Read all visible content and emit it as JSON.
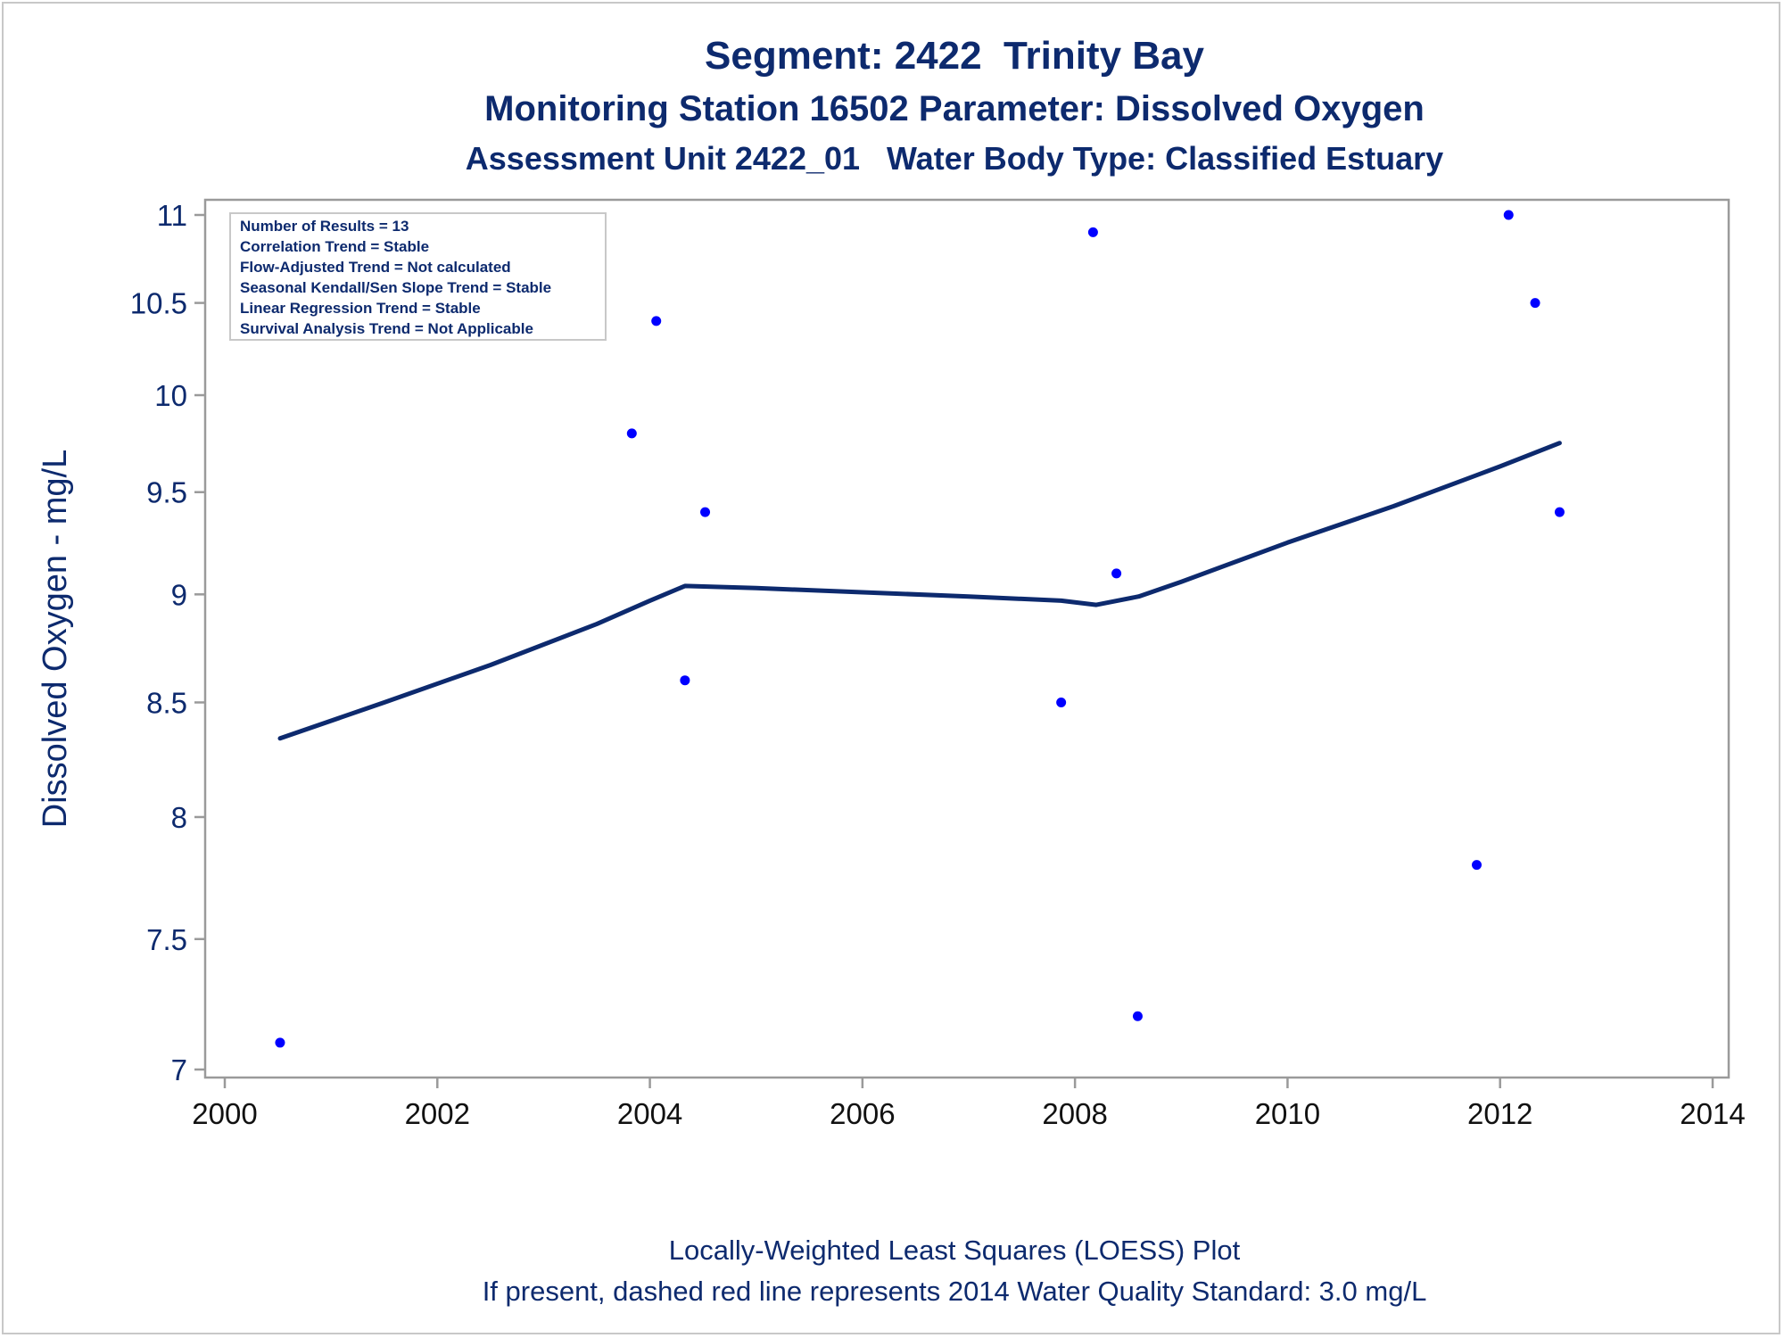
{
  "titles": {
    "line1": "Segment: 2422  Trinity Bay",
    "line2": "Monitoring Station 16502 Parameter: Dissolved Oxygen",
    "line3": "Assessment Unit 2422_01   Water Body Type: Classified Estuary"
  },
  "footnotes": {
    "line1": "Locally-Weighted Least Squares (LOESS) Plot",
    "line2": "If present, dashed red line represents 2014 Water Quality Standard: 3.0 mg/L"
  },
  "stats_box": [
    "Number of Results = 13",
    "Correlation Trend = Stable",
    "Flow-Adjusted Trend = Not calculated",
    "Seasonal Kendall/Sen Slope Trend = Stable",
    "Linear Regression Trend = Stable",
    "Survival Analysis Trend = Not Applicable"
  ],
  "colors": {
    "text": "#0d2a6e",
    "points": "#0000ff",
    "loess_line": "#0d2a6e",
    "axis": "#9a9a9a"
  },
  "chart_data": {
    "type": "scatter",
    "ylabel": "Dissolved Oxygen - mg/L",
    "xlabel": "",
    "xlim": [
      2000,
      2014
    ],
    "ylim": [
      7,
      11
    ],
    "y_scale": "log",
    "x_ticks": [
      2000,
      2002,
      2004,
      2006,
      2008,
      2010,
      2012,
      2014
    ],
    "y_ticks": [
      7,
      7.5,
      8,
      8.5,
      9,
      9.5,
      10,
      10.5,
      11
    ],
    "y_tick_labels": [
      "7",
      "7.5",
      "8",
      "8.5",
      "9",
      "9.5",
      "10",
      "10.5",
      "11"
    ],
    "x_tick_labels": [
      "2000",
      "2002",
      "2004",
      "2006",
      "2008",
      "2010",
      "2012",
      "2014"
    ],
    "points": [
      {
        "x": 2000.52,
        "y": 7.1
      },
      {
        "x": 2003.83,
        "y": 9.8
      },
      {
        "x": 2004.06,
        "y": 10.4
      },
      {
        "x": 2004.33,
        "y": 8.6
      },
      {
        "x": 2004.52,
        "y": 9.4
      },
      {
        "x": 2007.87,
        "y": 8.5
      },
      {
        "x": 2008.17,
        "y": 10.9
      },
      {
        "x": 2008.39,
        "y": 9.1
      },
      {
        "x": 2008.59,
        "y": 7.2
      },
      {
        "x": 2011.78,
        "y": 7.8
      },
      {
        "x": 2012.08,
        "y": 11.0
      },
      {
        "x": 2012.33,
        "y": 10.5
      },
      {
        "x": 2012.56,
        "y": 9.4
      }
    ],
    "loess": [
      {
        "x": 2000.52,
        "y": 8.34
      },
      {
        "x": 2001.5,
        "y": 8.5
      },
      {
        "x": 2002.5,
        "y": 8.67
      },
      {
        "x": 2003.5,
        "y": 8.86
      },
      {
        "x": 2004.0,
        "y": 8.97
      },
      {
        "x": 2004.33,
        "y": 9.04
      },
      {
        "x": 2005.0,
        "y": 9.03
      },
      {
        "x": 2006.0,
        "y": 9.01
      },
      {
        "x": 2007.0,
        "y": 8.99
      },
      {
        "x": 2007.87,
        "y": 8.97
      },
      {
        "x": 2008.2,
        "y": 8.95
      },
      {
        "x": 2008.6,
        "y": 8.99
      },
      {
        "x": 2009.0,
        "y": 9.06
      },
      {
        "x": 2010.0,
        "y": 9.25
      },
      {
        "x": 2011.0,
        "y": 9.43
      },
      {
        "x": 2012.0,
        "y": 9.63
      },
      {
        "x": 2012.56,
        "y": 9.75
      }
    ],
    "grid": false,
    "legend": "none"
  }
}
